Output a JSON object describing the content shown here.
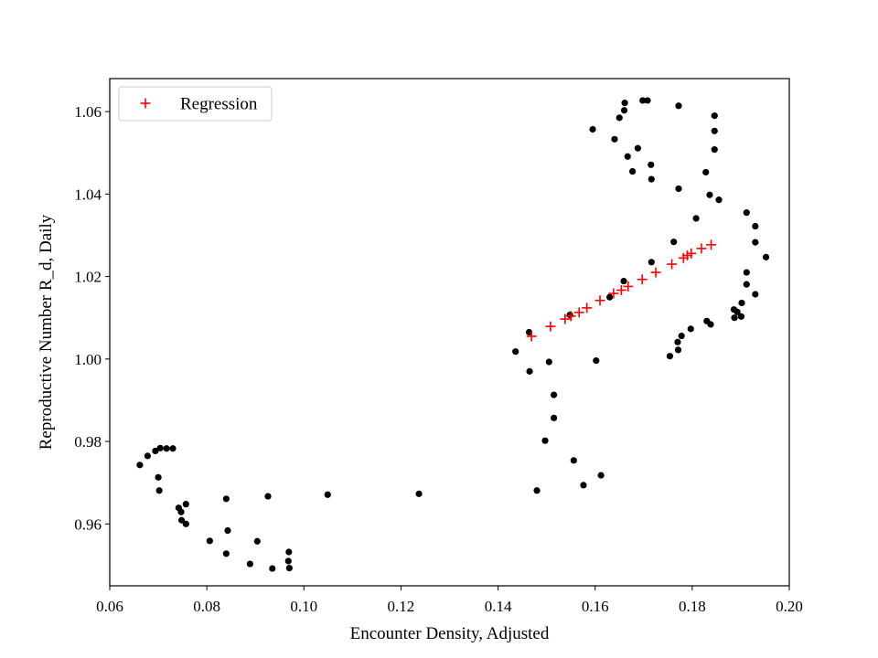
{
  "chart_data": {
    "type": "scatter",
    "title": "",
    "xlabel": "Encounter Density, Adjusted",
    "ylabel": "Reproductive Number R_d, Daily",
    "xlim": [
      0.06,
      0.2
    ],
    "ylim": [
      0.945,
      1.068
    ],
    "xticks": [
      "0.06",
      "0.08",
      "0.10",
      "0.12",
      "0.14",
      "0.16",
      "0.18",
      "0.20"
    ],
    "yticks": [
      "0.96",
      "0.98",
      "1.00",
      "1.02",
      "1.04",
      "1.06"
    ],
    "grid": false,
    "legend": {
      "position": "top-left",
      "entries": [
        "Regression"
      ]
    },
    "series": [
      {
        "marker": "dot",
        "color": "#000000",
        "points": [
          [
            0.0662,
            0.9743
          ],
          [
            0.0678,
            0.9765
          ],
          [
            0.0694,
            0.9777
          ],
          [
            0.0704,
            0.9784
          ],
          [
            0.0717,
            0.9783
          ],
          [
            0.073,
            0.9783
          ],
          [
            0.07,
            0.9713
          ],
          [
            0.0702,
            0.9681
          ],
          [
            0.0742,
            0.9639
          ],
          [
            0.0747,
            0.9629
          ],
          [
            0.0757,
            0.9648
          ],
          [
            0.0748,
            0.9609
          ],
          [
            0.0757,
            0.96
          ],
          [
            0.0806,
            0.9559
          ],
          [
            0.084,
            0.9661
          ],
          [
            0.0843,
            0.9584
          ],
          [
            0.084,
            0.9528
          ],
          [
            0.0889,
            0.9503
          ],
          [
            0.0904,
            0.9558
          ],
          [
            0.0926,
            0.9667
          ],
          [
            0.0935,
            0.9492
          ],
          [
            0.0969,
            0.9532
          ],
          [
            0.0968,
            0.951
          ],
          [
            0.097,
            0.9493
          ],
          [
            0.1049,
            0.9671
          ],
          [
            0.1237,
            0.9673
          ],
          [
            0.1436,
            1.0018
          ],
          [
            0.1464,
            1.0065
          ],
          [
            0.1465,
            0.997
          ],
          [
            0.148,
            0.9681
          ],
          [
            0.1497,
            0.9802
          ],
          [
            0.1505,
            0.9993
          ],
          [
            0.1515,
            0.9913
          ],
          [
            0.1515,
            0.9857
          ],
          [
            0.1548,
            1.0107
          ],
          [
            0.1556,
            0.9754
          ],
          [
            0.1576,
            0.9694
          ],
          [
            0.1595,
            1.0557
          ],
          [
            0.1602,
            0.9996
          ],
          [
            0.1612,
            0.9718
          ],
          [
            0.163,
            1.015
          ],
          [
            0.164,
            1.0533
          ],
          [
            0.165,
            1.0585
          ],
          [
            0.1659,
            1.0189
          ],
          [
            0.166,
            1.0603
          ],
          [
            0.1661,
            1.0621
          ],
          [
            0.1667,
            1.0491
          ],
          [
            0.1677,
            1.0455
          ],
          [
            0.1688,
            1.0511
          ],
          [
            0.1698,
            1.0627
          ],
          [
            0.1708,
            1.0627
          ],
          [
            0.1715,
            1.0471
          ],
          [
            0.1716,
            1.0436
          ],
          [
            0.1716,
            1.0235
          ],
          [
            0.1754,
            1.0007
          ],
          [
            0.1762,
            1.0284
          ],
          [
            0.177,
            1.0041
          ],
          [
            0.1771,
            1.0022
          ],
          [
            0.1772,
            1.0614
          ],
          [
            0.1772,
            1.0413
          ],
          [
            0.1778,
            1.0056
          ],
          [
            0.1797,
            1.0073
          ],
          [
            0.1808,
            1.0341
          ],
          [
            0.1828,
            1.0453
          ],
          [
            0.183,
            1.0092
          ],
          [
            0.1836,
            1.0398
          ],
          [
            0.1838,
            1.0084
          ],
          [
            0.1846,
            1.059
          ],
          [
            0.1846,
            1.0553
          ],
          [
            0.1846,
            1.0508
          ],
          [
            0.1855,
            1.0386
          ],
          [
            0.1886,
            1.012
          ],
          [
            0.1887,
            1.01
          ],
          [
            0.1893,
            1.0114
          ],
          [
            0.1901,
            1.0103
          ],
          [
            0.1902,
            1.0136
          ],
          [
            0.1912,
            1.0181
          ],
          [
            0.1912,
            1.021
          ],
          [
            0.1912,
            1.0355
          ],
          [
            0.193,
            1.0322
          ],
          [
            0.193,
            1.0283
          ],
          [
            0.193,
            1.0157
          ],
          [
            0.1952,
            1.0247
          ]
        ]
      },
      {
        "name": "Regression",
        "marker": "plus",
        "color": "#ff0000",
        "points": [
          [
            0.1469,
            1.0055
          ],
          [
            0.1508,
            1.0079
          ],
          [
            0.1538,
            1.0097
          ],
          [
            0.155,
            1.0104
          ],
          [
            0.1567,
            1.0113
          ],
          [
            0.1583,
            1.0124
          ],
          [
            0.161,
            1.0142
          ],
          [
            0.1638,
            1.0159
          ],
          [
            0.1654,
            1.0167
          ],
          [
            0.1668,
            1.0176
          ],
          [
            0.1697,
            1.0193
          ],
          [
            0.1725,
            1.021
          ],
          [
            0.1758,
            1.023
          ],
          [
            0.1782,
            1.0245
          ],
          [
            0.179,
            1.0251
          ],
          [
            0.1798,
            1.0256
          ],
          [
            0.1819,
            1.0268
          ],
          [
            0.1839,
            1.0277
          ]
        ]
      }
    ]
  }
}
